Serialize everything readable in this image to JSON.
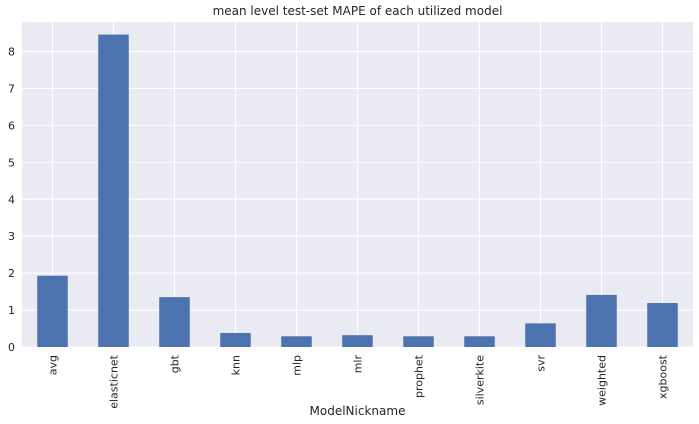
{
  "chart_data": {
    "type": "bar",
    "title": "mean level test-set MAPE of each utilized model",
    "xlabel": "ModelNickname",
    "ylabel": "",
    "categories": [
      "avg",
      "elasticnet",
      "gbt",
      "knn",
      "mlp",
      "mlr",
      "prophet",
      "silverkite",
      "svr",
      "weighted",
      "xgboost"
    ],
    "values": [
      1.93,
      8.46,
      1.35,
      0.38,
      0.29,
      0.32,
      0.29,
      0.29,
      0.64,
      1.41,
      1.19
    ],
    "ylim": [
      0,
      8.8
    ],
    "yticks": [
      0,
      1,
      2,
      3,
      4,
      5,
      6,
      7,
      8
    ],
    "grid": true,
    "legend": "none",
    "colors": {
      "bar": "#4c72b0",
      "background": "#eaeaf2",
      "grid": "#ffffff"
    }
  }
}
